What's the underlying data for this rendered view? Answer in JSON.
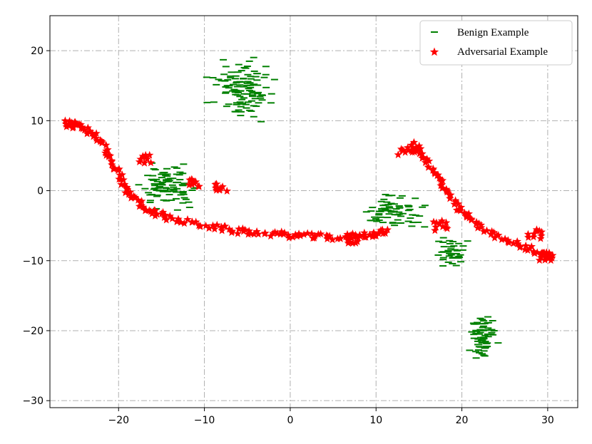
{
  "chart_data": {
    "type": "scatter",
    "xlim": [
      -28.0,
      33.5
    ],
    "ylim": [
      -31.0,
      25.0
    ],
    "xticks": [
      -20,
      -10,
      0,
      10,
      20,
      30
    ],
    "yticks": [
      -30,
      -20,
      -10,
      0,
      10,
      20
    ],
    "grid": true,
    "legend_position": "top-right",
    "series": [
      {
        "name": "Benign Example",
        "color": "#008000",
        "marker": "line",
        "regions": [
          {
            "cx": -5.5,
            "cy": 14.5,
            "sx": 4.2,
            "sy": 4.8,
            "n": 120
          },
          {
            "cx": -14.0,
            "cy": 0.5,
            "sx": 3.8,
            "sy": 3.5,
            "n": 95
          },
          {
            "cx": 12.0,
            "cy": -3.0,
            "sx": 4.5,
            "sy": 2.8,
            "n": 75
          },
          {
            "cx": 18.5,
            "cy": -9.0,
            "sx": 2.3,
            "sy": 3.0,
            "n": 40
          },
          {
            "cx": 22.5,
            "cy": -21.0,
            "sx": 1.8,
            "sy": 4.0,
            "n": 70
          }
        ]
      },
      {
        "name": "Adversarial Example",
        "color": "#ff0000",
        "marker": "star",
        "path": [
          [
            -26,
            9.5
          ],
          [
            -24,
            9.0
          ],
          [
            -22,
            7.0
          ],
          [
            -20.5,
            3.5
          ],
          [
            -19,
            0.0
          ],
          [
            -17,
            -2.5
          ],
          [
            -14,
            -4.0
          ],
          [
            -10,
            -5.0
          ],
          [
            -6,
            -5.8
          ],
          [
            -2,
            -6.2
          ],
          [
            2,
            -6.5
          ],
          [
            6,
            -6.7
          ],
          [
            9,
            -6.3
          ],
          [
            11.5,
            -5.8
          ]
        ],
        "path2": [
          [
            12.5,
            5.5
          ],
          [
            14.8,
            6.0
          ],
          [
            16.5,
            3.0
          ],
          [
            18.0,
            0.5
          ],
          [
            19.5,
            -2.5
          ],
          [
            21.5,
            -4.5
          ],
          [
            24.0,
            -6.5
          ],
          [
            27.0,
            -8.0
          ],
          [
            29.5,
            -9.0
          ],
          [
            30.5,
            -9.5
          ]
        ],
        "clusters": [
          [
            -25.5,
            9.5
          ],
          [
            -11.0,
            1.0
          ],
          [
            -8.0,
            0.5
          ],
          [
            -17.0,
            4.5
          ],
          [
            14.8,
            6.2
          ],
          [
            17.5,
            -5.0
          ],
          [
            29.8,
            -9.3
          ],
          [
            28.5,
            -6.2
          ],
          [
            7.5,
            -7.0
          ]
        ]
      }
    ]
  }
}
